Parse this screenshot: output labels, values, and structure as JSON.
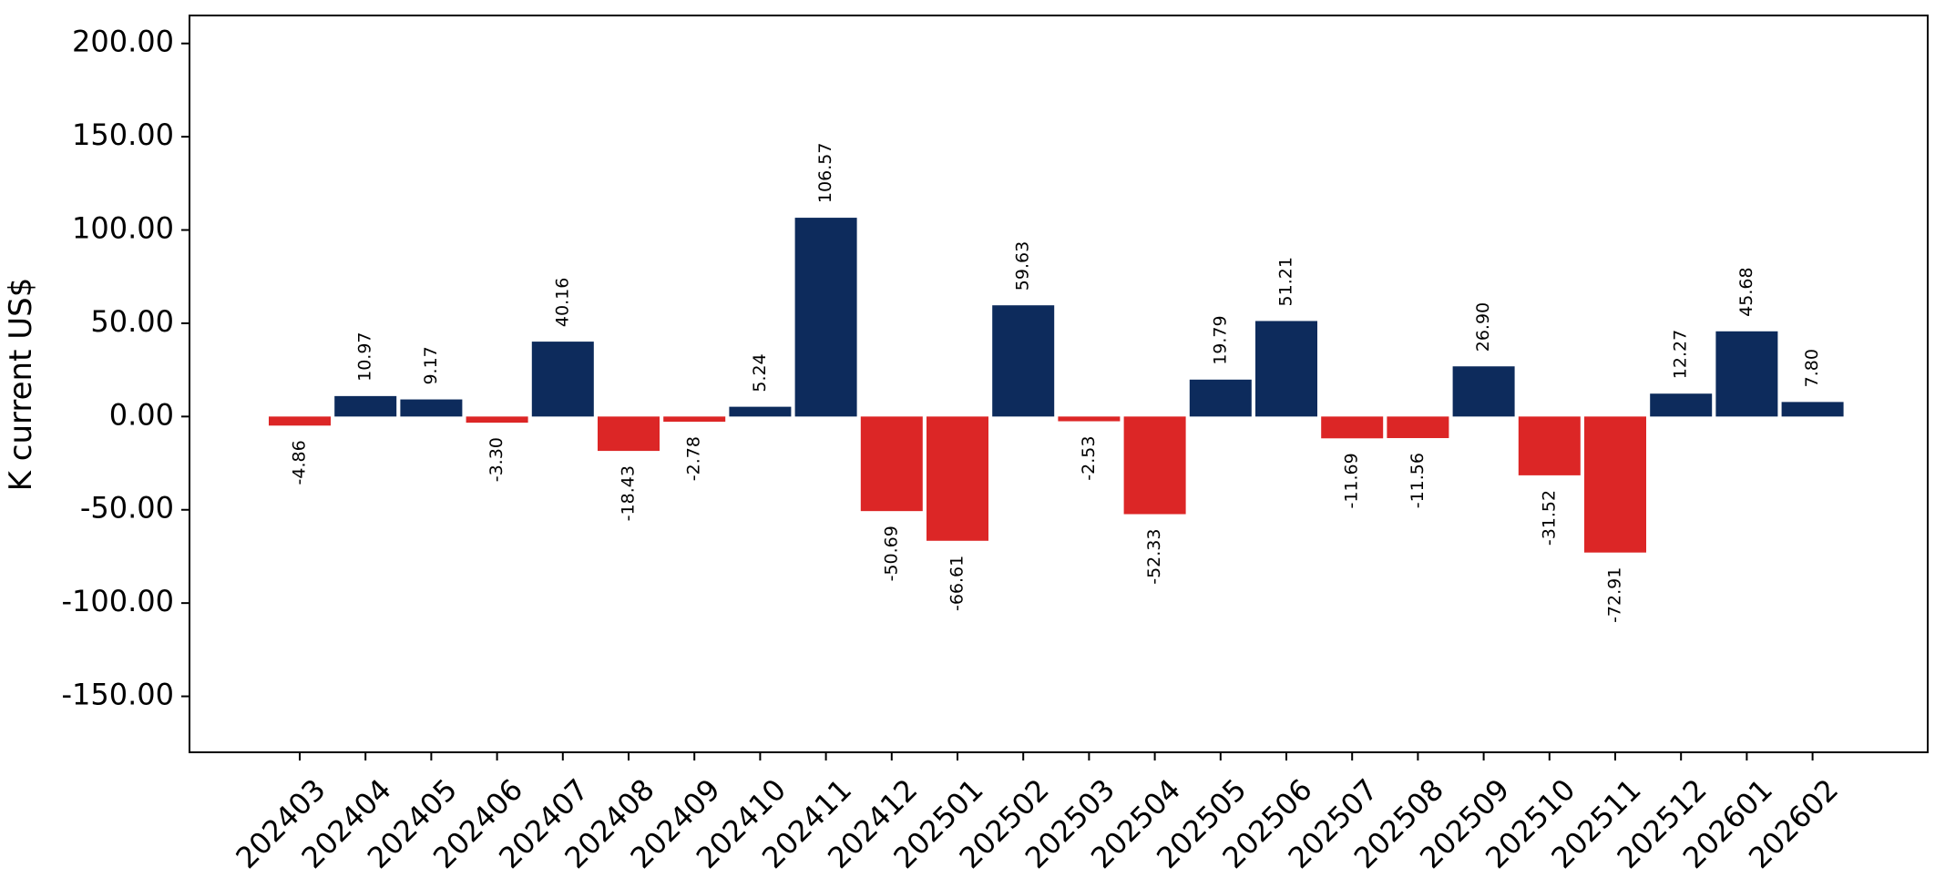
{
  "chart_data": {
    "type": "bar",
    "ylabel": "K current US$",
    "ylim": [
      -180,
      215
    ],
    "yticks": [
      200,
      150,
      100,
      50,
      0,
      -50,
      -100,
      -150
    ],
    "ytick_labels": [
      "200.00",
      "150.00",
      "100.00",
      "50.00",
      "0.00",
      "-50.00",
      "-100.00",
      "-150.00"
    ],
    "categories": [
      "202403",
      "202404",
      "202405",
      "202406",
      "202407",
      "202408",
      "202409",
      "202410",
      "202411",
      "202412",
      "202501",
      "202502",
      "202503",
      "202504",
      "202505",
      "202506",
      "202507",
      "202508",
      "202509",
      "202510",
      "202511",
      "202512",
      "202601",
      "202602"
    ],
    "values": [
      -4.86,
      10.97,
      9.17,
      -3.3,
      40.16,
      -18.43,
      -2.78,
      5.24,
      106.57,
      -50.69,
      -66.61,
      59.63,
      -2.53,
      -52.33,
      19.79,
      51.21,
      -11.69,
      -11.56,
      26.9,
      -31.52,
      -72.91,
      12.27,
      45.68,
      7.8
    ],
    "value_labels": [
      "-4.86",
      "10.97",
      "9.17",
      "-3.30",
      "40.16",
      "-18.43",
      "-2.78",
      "5.24",
      "106.57",
      "-50.69",
      "-66.61",
      "59.63",
      "-2.53",
      "-52.33",
      "19.79",
      "51.21",
      "-11.69",
      "-11.56",
      "26.90",
      "-31.52",
      "-72.91",
      "12.27",
      "45.68",
      "7.80"
    ],
    "positive_color": "#0d2b5c",
    "negative_color": "#dc2626",
    "grid": false,
    "legend": "none"
  }
}
